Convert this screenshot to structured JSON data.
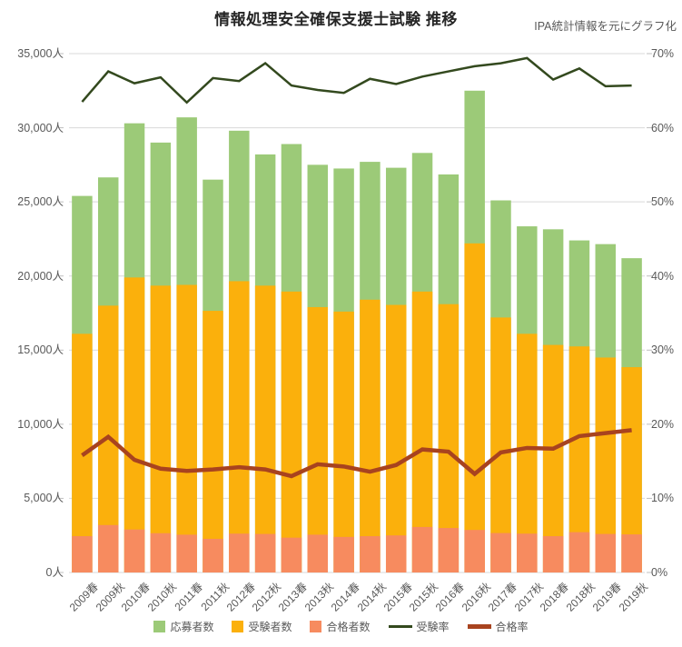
{
  "chart": {
    "title": "情報処理安全確保支援士試験 推移",
    "note": "IPA統計情報を元にグラフ化"
  },
  "chart_data": {
    "type": "bar",
    "combo": "overlay bars + lines on secondary axis",
    "title": "情報処理安全確保支援士試験 推移",
    "subtitle": "IPA統計情報を元にグラフ化",
    "grid": true,
    "legend_position": "bottom",
    "bar_mode": "overlay",
    "categories": [
      "2009春",
      "2009秋",
      "2010春",
      "2010秋",
      "2011春",
      "2011秋",
      "2012春",
      "2012秋",
      "2013春",
      "2013秋",
      "2014春",
      "2014秋",
      "2015春",
      "2015秋",
      "2016春",
      "2016秋",
      "2017春",
      "2017秋",
      "2018春",
      "2018秋",
      "2019春",
      "2019秋"
    ],
    "left_axis": {
      "min": 0,
      "max": 35000,
      "step": 5000,
      "unit": "人",
      "tick_labels": [
        "35,000人",
        "30,000人",
        "25,000人",
        "20,000人",
        "15,000人",
        "10,000人",
        "5,000人",
        "0人"
      ]
    },
    "right_axis": {
      "min": 0,
      "max": 70,
      "step": 10,
      "unit": "%",
      "tick_labels": [
        "70%",
        "60%",
        "50%",
        "40%",
        "30%",
        "20%",
        "10%",
        "0%"
      ]
    },
    "series": [
      {
        "name": "応募者数",
        "type": "bar",
        "axis": "left",
        "color": "#9CCA78",
        "values": [
          25400,
          26650,
          30300,
          29000,
          30700,
          26500,
          29800,
          28200,
          28900,
          27500,
          27250,
          27700,
          27300,
          28300,
          26850,
          32500,
          25100,
          23350,
          23150,
          22400,
          22150,
          21200
        ]
      },
      {
        "name": "受験者数",
        "type": "bar",
        "axis": "left",
        "color": "#FBB00C",
        "values": [
          16100,
          18000,
          19900,
          19350,
          19400,
          17650,
          19650,
          19350,
          18950,
          17900,
          17600,
          18400,
          18050,
          18950,
          18100,
          22200,
          17200,
          16100,
          15350,
          15250,
          14500,
          13850
        ]
      },
      {
        "name": "合格者数",
        "type": "bar",
        "axis": "left",
        "color": "#F78B5F",
        "values": [
          2450,
          3200,
          2900,
          2650,
          2550,
          2270,
          2620,
          2600,
          2350,
          2550,
          2400,
          2450,
          2500,
          3070,
          3000,
          2870,
          2660,
          2620,
          2450,
          2720,
          2600,
          2570
        ]
      },
      {
        "name": "受験率",
        "type": "line",
        "axis": "right",
        "color": "#33491E",
        "stroke_width": 2.5,
        "values": [
          63.5,
          67.6,
          66.0,
          66.8,
          63.4,
          66.7,
          66.3,
          68.7,
          65.7,
          65.1,
          64.7,
          66.6,
          65.9,
          66.9,
          67.6,
          68.3,
          68.7,
          69.4,
          66.5,
          68.0,
          65.6,
          65.7
        ]
      },
      {
        "name": "合格率",
        "type": "line",
        "axis": "right",
        "color": "#A8431F",
        "stroke_width": 4.5,
        "values": [
          15.8,
          18.3,
          15.2,
          14.0,
          13.7,
          13.9,
          14.2,
          13.9,
          13.0,
          14.6,
          14.3,
          13.6,
          14.5,
          16.6,
          16.3,
          13.3,
          16.2,
          16.8,
          16.7,
          18.4,
          18.8,
          19.2
        ]
      }
    ],
    "colors": {
      "grid": "#D9D9D9",
      "axis_tick": "#BFBFBF",
      "axis_text": "#595959",
      "title_text": "#262626"
    }
  }
}
